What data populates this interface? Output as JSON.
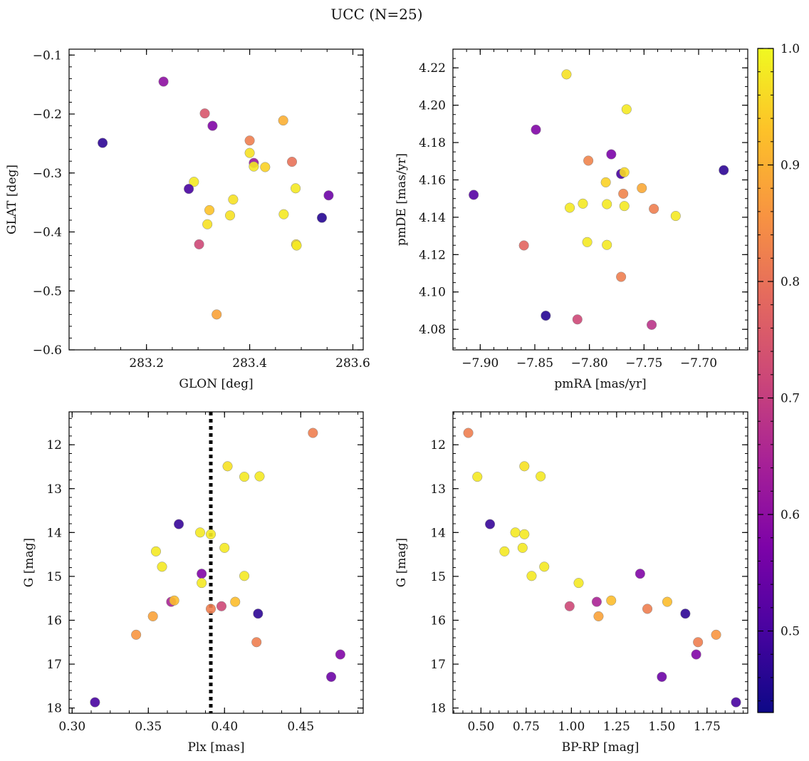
{
  "figure": {
    "title": "UCC (N=25)"
  },
  "colorbar": {
    "colormap": "plasma",
    "range": [
      0.43,
      1.0
    ],
    "ticks": [
      "0.5",
      "0.6",
      "0.7",
      "0.8",
      "0.9",
      "1.0"
    ]
  },
  "chart_data": [
    {
      "type": "scatter",
      "id": "glon-glat",
      "xlabel": "GLON [deg]",
      "ylabel": "GLAT [deg]",
      "xlim": [
        283.05,
        283.62
      ],
      "ylim": [
        -0.6,
        -0.09
      ],
      "x_ticks": [
        "283.2",
        "283.4",
        "283.6"
      ],
      "y_ticks": [
        "−0.1",
        "−0.2",
        "−0.3",
        "−0.4",
        "−0.5",
        "−0.6"
      ],
      "points": [
        {
          "x": 283.233,
          "y": -0.145,
          "c": 0.6
        },
        {
          "x": 283.115,
          "y": -0.249,
          "c": 0.47
        },
        {
          "x": 283.313,
          "y": -0.199,
          "c": 0.75
        },
        {
          "x": 283.328,
          "y": -0.22,
          "c": 0.58
        },
        {
          "x": 283.465,
          "y": -0.211,
          "c": 0.9
        },
        {
          "x": 283.4,
          "y": -0.245,
          "c": 0.82
        },
        {
          "x": 283.4,
          "y": -0.266,
          "c": 0.97
        },
        {
          "x": 283.408,
          "y": -0.283,
          "c": 0.62
        },
        {
          "x": 283.408,
          "y": -0.289,
          "c": 0.98
        },
        {
          "x": 283.43,
          "y": -0.29,
          "c": 0.95
        },
        {
          "x": 283.482,
          "y": -0.281,
          "c": 0.8
        },
        {
          "x": 283.292,
          "y": -0.315,
          "c": 0.98
        },
        {
          "x": 283.282,
          "y": -0.327,
          "c": 0.5
        },
        {
          "x": 283.489,
          "y": -0.326,
          "c": 0.98
        },
        {
          "x": 283.553,
          "y": -0.338,
          "c": 0.55
        },
        {
          "x": 283.368,
          "y": -0.345,
          "c": 0.97
        },
        {
          "x": 283.322,
          "y": -0.363,
          "c": 0.93
        },
        {
          "x": 283.362,
          "y": -0.372,
          "c": 0.97
        },
        {
          "x": 283.466,
          "y": -0.37,
          "c": 0.98
        },
        {
          "x": 283.54,
          "y": -0.376,
          "c": 0.46
        },
        {
          "x": 283.318,
          "y": -0.387,
          "c": 0.97
        },
        {
          "x": 283.49,
          "y": -0.421,
          "c": 0.96
        },
        {
          "x": 283.491,
          "y": -0.423,
          "c": 0.98
        },
        {
          "x": 283.302,
          "y": -0.421,
          "c": 0.72
        },
        {
          "x": 283.336,
          "y": -0.54,
          "c": 0.88
        }
      ]
    },
    {
      "type": "scatter",
      "id": "pmra-pmde",
      "xlabel": "pmRA [mas/yr]",
      "ylabel": "pmDE [mas/yr]",
      "xlim": [
        -7.925,
        -7.655
      ],
      "ylim": [
        4.069,
        4.23
      ],
      "x_ticks": [
        "−7.90",
        "−7.85",
        "−7.80",
        "−7.75",
        "−7.70"
      ],
      "y_ticks": [
        "4.22",
        "4.20",
        "4.18",
        "4.16",
        "4.14",
        "4.12",
        "4.10",
        "4.08"
      ],
      "points": [
        {
          "x": -7.821,
          "y": 4.2165,
          "c": 0.97
        },
        {
          "x": -7.766,
          "y": 4.1978,
          "c": 0.98
        },
        {
          "x": -7.849,
          "y": 4.1869,
          "c": 0.58
        },
        {
          "x": -7.78,
          "y": 4.1737,
          "c": 0.57
        },
        {
          "x": -7.801,
          "y": 4.1703,
          "c": 0.83
        },
        {
          "x": -7.771,
          "y": 4.1632,
          "c": 0.5
        },
        {
          "x": -7.768,
          "y": 4.1641,
          "c": 0.96
        },
        {
          "x": -7.677,
          "y": 4.1652,
          "c": 0.47
        },
        {
          "x": -7.906,
          "y": 4.152,
          "c": 0.52
        },
        {
          "x": -7.785,
          "y": 4.1587,
          "c": 0.95
        },
        {
          "x": -7.752,
          "y": 4.1556,
          "c": 0.89
        },
        {
          "x": -7.769,
          "y": 4.1526,
          "c": 0.83
        },
        {
          "x": -7.806,
          "y": 4.1473,
          "c": 0.98
        },
        {
          "x": -7.818,
          "y": 4.1451,
          "c": 0.98
        },
        {
          "x": -7.784,
          "y": 4.147,
          "c": 0.98
        },
        {
          "x": -7.768,
          "y": 4.146,
          "c": 0.98
        },
        {
          "x": -7.741,
          "y": 4.1445,
          "c": 0.82
        },
        {
          "x": -7.721,
          "y": 4.1407,
          "c": 0.98
        },
        {
          "x": -7.802,
          "y": 4.1267,
          "c": 0.98
        },
        {
          "x": -7.86,
          "y": 4.1249,
          "c": 0.78
        },
        {
          "x": -7.784,
          "y": 4.1252,
          "c": 0.98
        },
        {
          "x": -7.771,
          "y": 4.1081,
          "c": 0.82
        },
        {
          "x": -7.84,
          "y": 4.0873,
          "c": 0.46
        },
        {
          "x": -7.811,
          "y": 4.0853,
          "c": 0.72
        },
        {
          "x": -7.743,
          "y": 4.0824,
          "c": 0.68
        }
      ]
    },
    {
      "type": "scatter",
      "id": "plx-g",
      "xlabel": "Plx [mas]",
      "ylabel": "G [mag]",
      "xlim": [
        0.298,
        0.491
      ],
      "ylim": [
        18.12,
        11.25
      ],
      "y_inverted": true,
      "x_ticks": [
        "0.30",
        "0.35",
        "0.40",
        "0.45"
      ],
      "y_ticks": [
        "12",
        "13",
        "14",
        "15",
        "16",
        "17",
        "18"
      ],
      "vline": {
        "x": 0.391,
        "style": "dotted",
        "color": "#000000"
      },
      "points": [
        {
          "x": 0.458,
          "y": 11.73,
          "c": 0.82
        },
        {
          "x": 0.402,
          "y": 12.49,
          "c": 0.97
        },
        {
          "x": 0.413,
          "y": 12.73,
          "c": 0.98
        },
        {
          "x": 0.423,
          "y": 12.72,
          "c": 0.98
        },
        {
          "x": 0.37,
          "y": 13.81,
          "c": 0.48
        },
        {
          "x": 0.384,
          "y": 14.0,
          "c": 0.98
        },
        {
          "x": 0.391,
          "y": 14.04,
          "c": 0.98
        },
        {
          "x": 0.4,
          "y": 14.35,
          "c": 0.98
        },
        {
          "x": 0.355,
          "y": 14.43,
          "c": 0.98
        },
        {
          "x": 0.359,
          "y": 14.78,
          "c": 0.98
        },
        {
          "x": 0.385,
          "y": 14.94,
          "c": 0.58
        },
        {
          "x": 0.413,
          "y": 14.99,
          "c": 0.98
        },
        {
          "x": 0.385,
          "y": 15.15,
          "c": 0.98
        },
        {
          "x": 0.365,
          "y": 15.58,
          "c": 0.65
        },
        {
          "x": 0.367,
          "y": 15.55,
          "c": 0.92
        },
        {
          "x": 0.407,
          "y": 15.58,
          "c": 0.92
        },
        {
          "x": 0.398,
          "y": 15.68,
          "c": 0.72
        },
        {
          "x": 0.391,
          "y": 15.74,
          "c": 0.82
        },
        {
          "x": 0.422,
          "y": 15.85,
          "c": 0.47
        },
        {
          "x": 0.353,
          "y": 15.91,
          "c": 0.88
        },
        {
          "x": 0.342,
          "y": 16.33,
          "c": 0.86
        },
        {
          "x": 0.421,
          "y": 16.5,
          "c": 0.82
        },
        {
          "x": 0.476,
          "y": 16.78,
          "c": 0.58
        },
        {
          "x": 0.47,
          "y": 17.29,
          "c": 0.55
        },
        {
          "x": 0.315,
          "y": 17.87,
          "c": 0.5
        }
      ]
    },
    {
      "type": "scatter",
      "id": "bprp-g",
      "xlabel": "BP-RP [mag]",
      "ylabel": "G [mag]",
      "xlim": [
        0.345,
        1.975
      ],
      "ylim": [
        18.12,
        11.25
      ],
      "y_inverted": true,
      "x_ticks": [
        "0.50",
        "0.75",
        "1.00",
        "1.25",
        "1.50",
        "1.75"
      ],
      "y_ticks": [
        "12",
        "13",
        "14",
        "15",
        "16",
        "17",
        "18"
      ],
      "points": [
        {
          "x": 0.43,
          "y": 11.73,
          "c": 0.82
        },
        {
          "x": 0.48,
          "y": 12.73,
          "c": 0.98
        },
        {
          "x": 0.74,
          "y": 12.49,
          "c": 0.97
        },
        {
          "x": 0.83,
          "y": 12.72,
          "c": 0.98
        },
        {
          "x": 0.55,
          "y": 13.81,
          "c": 0.48
        },
        {
          "x": 0.69,
          "y": 14.0,
          "c": 0.98
        },
        {
          "x": 0.74,
          "y": 14.04,
          "c": 0.98
        },
        {
          "x": 0.63,
          "y": 14.43,
          "c": 0.98
        },
        {
          "x": 0.73,
          "y": 14.35,
          "c": 0.98
        },
        {
          "x": 0.85,
          "y": 14.78,
          "c": 0.98
        },
        {
          "x": 0.78,
          "y": 14.99,
          "c": 0.98
        },
        {
          "x": 1.38,
          "y": 14.94,
          "c": 0.58
        },
        {
          "x": 1.04,
          "y": 15.15,
          "c": 0.98
        },
        {
          "x": 0.99,
          "y": 15.68,
          "c": 0.72
        },
        {
          "x": 1.14,
          "y": 15.58,
          "c": 0.65
        },
        {
          "x": 1.22,
          "y": 15.55,
          "c": 0.92
        },
        {
          "x": 1.53,
          "y": 15.58,
          "c": 0.92
        },
        {
          "x": 1.42,
          "y": 15.74,
          "c": 0.82
        },
        {
          "x": 1.15,
          "y": 15.91,
          "c": 0.88
        },
        {
          "x": 1.63,
          "y": 15.85,
          "c": 0.47
        },
        {
          "x": 1.8,
          "y": 16.33,
          "c": 0.86
        },
        {
          "x": 1.7,
          "y": 16.5,
          "c": 0.82
        },
        {
          "x": 1.69,
          "y": 16.78,
          "c": 0.58
        },
        {
          "x": 1.5,
          "y": 17.29,
          "c": 0.55
        },
        {
          "x": 1.91,
          "y": 17.87,
          "c": 0.5
        }
      ]
    }
  ]
}
